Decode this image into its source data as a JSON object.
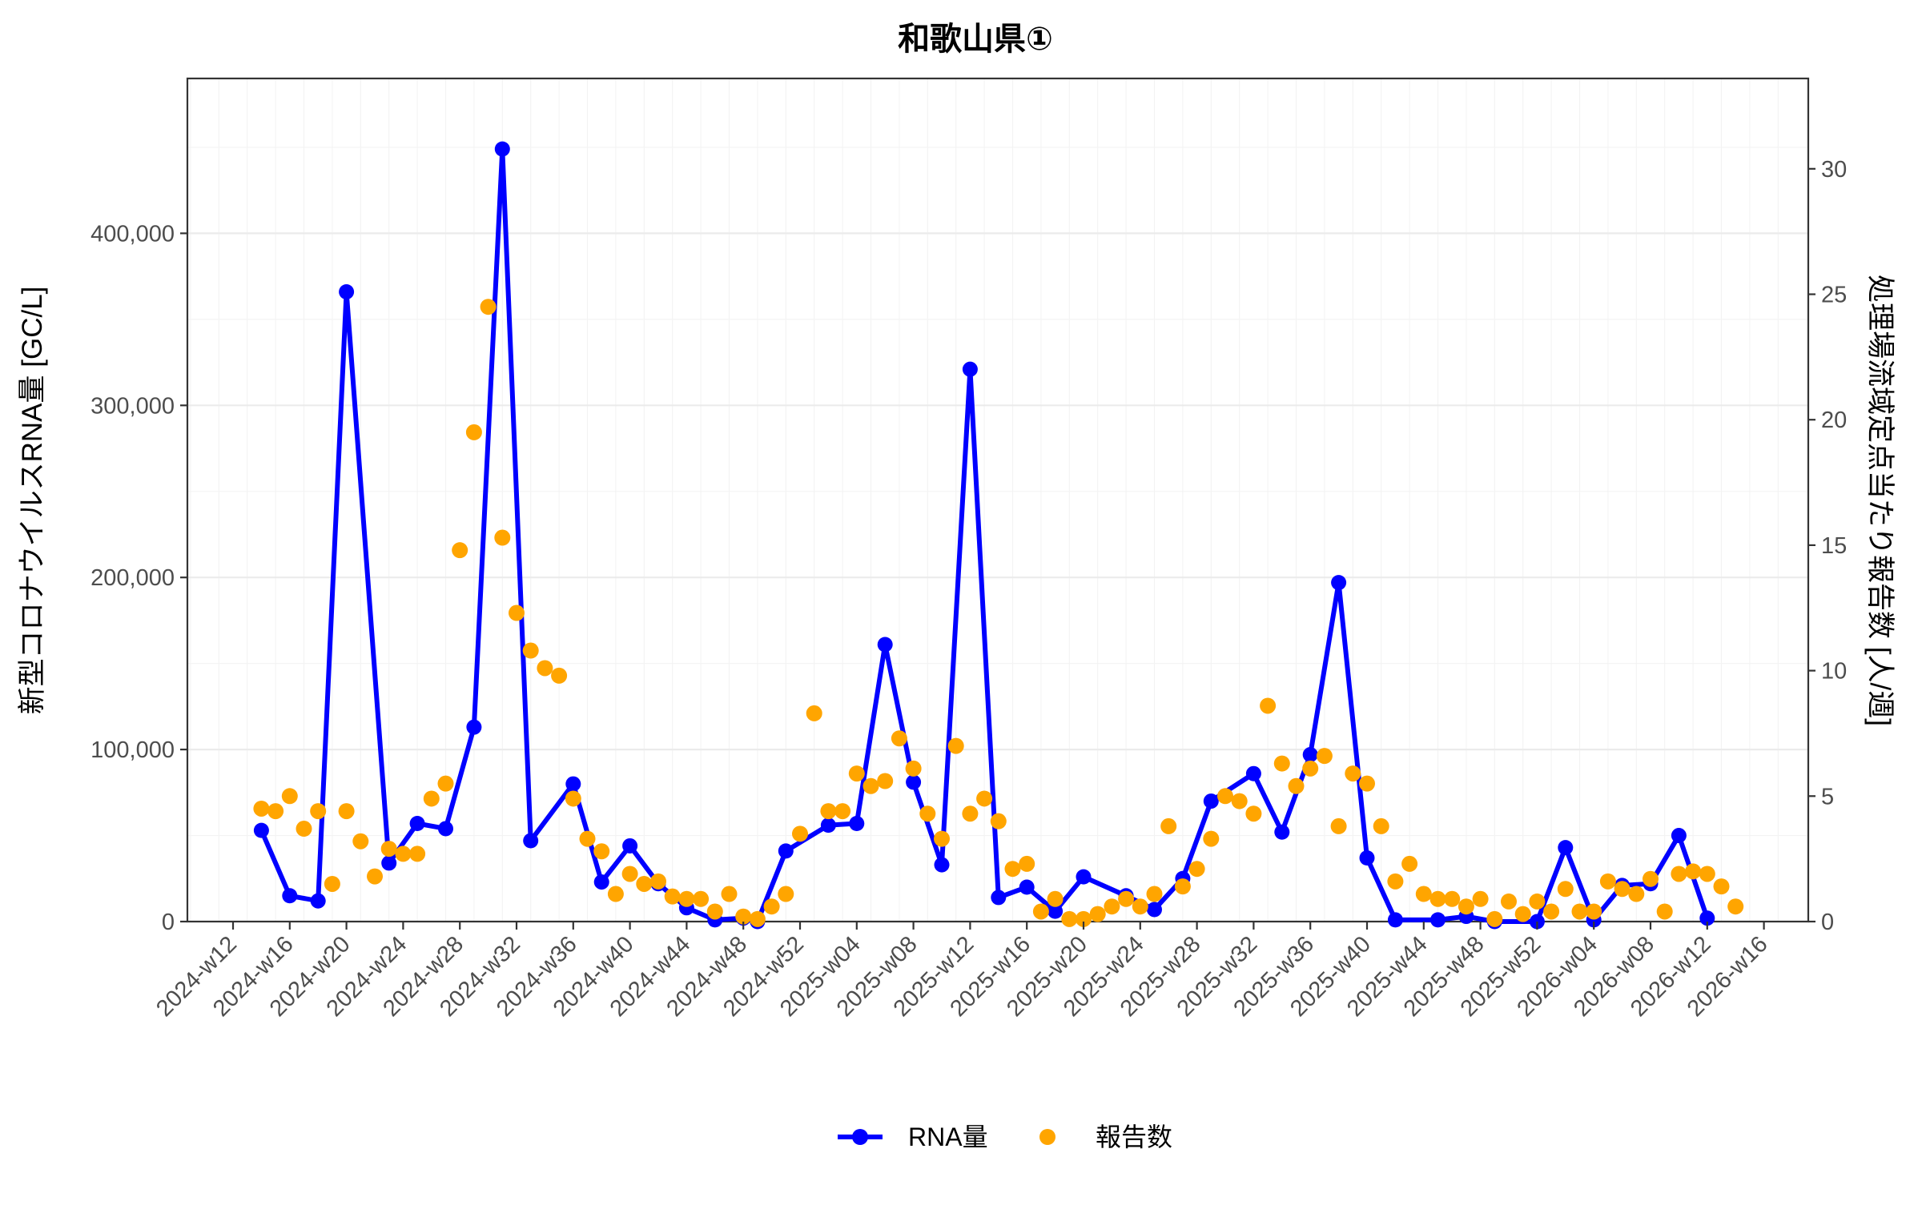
{
  "chart_data": {
    "type": "line",
    "title": "和歌山県①",
    "xlabel": "",
    "ylabel": "新型コロナウイルスRNA量 [GC/L]",
    "y2label": "処理場流域定点当たり報告数 [人/週]",
    "ylim": [
      0,
      490000
    ],
    "y2lim": [
      0,
      33.6
    ],
    "y_ticks": [
      0,
      100000,
      200000,
      300000,
      400000
    ],
    "y_tick_labels": [
      "0",
      "100,000",
      "200,000",
      "300,000",
      "400,000"
    ],
    "y2_ticks": [
      0,
      5,
      10,
      15,
      20,
      25,
      30
    ],
    "y2_tick_labels": [
      "0",
      "5",
      "10",
      "15",
      "20",
      "25",
      "30"
    ],
    "x_tick_labels": [
      "2024-w12",
      "2024-w16",
      "2024-w20",
      "2024-w24",
      "2024-w28",
      "2024-w32",
      "2024-w36",
      "2024-w40",
      "2024-w44",
      "2024-w48",
      "2024-w52",
      "2025-w04",
      "2025-w08",
      "2025-w12",
      "2025-w16",
      "2025-w20",
      "2025-w24",
      "2025-w28",
      "2025-w32",
      "2025-w36",
      "2025-w40",
      "2025-w44",
      "2025-w48",
      "2025-w52",
      "2026-w04",
      "2026-w08",
      "2026-w12",
      "2026-w16"
    ],
    "grid": true,
    "legend_position": "bottom",
    "legend": [
      {
        "name": "RNA量",
        "type": "line+point",
        "color": "#0000FF"
      },
      {
        "name": "報告数",
        "type": "point",
        "color": "#FFA500"
      }
    ],
    "series": [
      {
        "name": "RNA量",
        "axis": "left",
        "color": "#0000FF",
        "points": [
          {
            "x": "2024-w14",
            "y": 53000
          },
          {
            "x": "2024-w16",
            "y": 15000
          },
          {
            "x": "2024-w18",
            "y": 12000
          },
          {
            "x": "2024-w20",
            "y": 366000
          },
          {
            "x": "2024-w23",
            "y": 34000
          },
          {
            "x": "2024-w25",
            "y": 57000
          },
          {
            "x": "2024-w27",
            "y": 54000
          },
          {
            "x": "2024-w29",
            "y": 113000
          },
          {
            "x": "2024-w31",
            "y": 449000
          },
          {
            "x": "2024-w33",
            "y": 47000
          },
          {
            "x": "2024-w36",
            "y": 80000
          },
          {
            "x": "2024-w38",
            "y": 23000
          },
          {
            "x": "2024-w40",
            "y": 44000
          },
          {
            "x": "2024-w42",
            "y": 22000
          },
          {
            "x": "2024-w44",
            "y": 8000
          },
          {
            "x": "2024-w46",
            "y": 1000
          },
          {
            "x": "2024-w48",
            "y": 2000
          },
          {
            "x": "2024-w49",
            "y": 0
          },
          {
            "x": "2024-w51",
            "y": 41000
          },
          {
            "x": "2025-w02",
            "y": 56000
          },
          {
            "x": "2025-w04",
            "y": 57000
          },
          {
            "x": "2025-w06",
            "y": 161000
          },
          {
            "x": "2025-w08",
            "y": 81000
          },
          {
            "x": "2025-w10",
            "y": 33000
          },
          {
            "x": "2025-w12",
            "y": 321000
          },
          {
            "x": "2025-w14",
            "y": 14000
          },
          {
            "x": "2025-w16",
            "y": 20000
          },
          {
            "x": "2025-w18",
            "y": 6000
          },
          {
            "x": "2025-w20",
            "y": 26000
          },
          {
            "x": "2025-w23",
            "y": 15000
          },
          {
            "x": "2025-w25",
            "y": 7000
          },
          {
            "x": "2025-w27",
            "y": 25000
          },
          {
            "x": "2025-w29",
            "y": 70000
          },
          {
            "x": "2025-w32",
            "y": 86000
          },
          {
            "x": "2025-w34",
            "y": 52000
          },
          {
            "x": "2025-w36",
            "y": 97000
          },
          {
            "x": "2025-w38",
            "y": 197000
          },
          {
            "x": "2025-w40",
            "y": 37000
          },
          {
            "x": "2025-w42",
            "y": 1000
          },
          {
            "x": "2025-w45",
            "y": 1000
          },
          {
            "x": "2025-w47",
            "y": 3000
          },
          {
            "x": "2025-w49",
            "y": 0
          },
          {
            "x": "2025-w52",
            "y": 0
          },
          {
            "x": "2026-w02",
            "y": 43000
          },
          {
            "x": "2026-w04",
            "y": 1000
          },
          {
            "x": "2026-w06",
            "y": 21000
          },
          {
            "x": "2026-w08",
            "y": 22000
          },
          {
            "x": "2026-w10",
            "y": 50000
          },
          {
            "x": "2026-w12",
            "y": 2000
          }
        ]
      },
      {
        "name": "報告数",
        "axis": "right",
        "color": "#FFA500",
        "points": [
          {
            "x": "2024-w14",
            "y": 4.5
          },
          {
            "x": "2024-w15",
            "y": 4.4
          },
          {
            "x": "2024-w16",
            "y": 5.0
          },
          {
            "x": "2024-w17",
            "y": 3.7
          },
          {
            "x": "2024-w18",
            "y": 4.4
          },
          {
            "x": "2024-w19",
            "y": 1.5
          },
          {
            "x": "2024-w20",
            "y": 4.4
          },
          {
            "x": "2024-w21",
            "y": 3.2
          },
          {
            "x": "2024-w22",
            "y": 1.8
          },
          {
            "x": "2024-w23",
            "y": 2.9
          },
          {
            "x": "2024-w24",
            "y": 2.7
          },
          {
            "x": "2024-w25",
            "y": 2.7
          },
          {
            "x": "2024-w26",
            "y": 4.9
          },
          {
            "x": "2024-w27",
            "y": 5.5
          },
          {
            "x": "2024-w28",
            "y": 14.8
          },
          {
            "x": "2024-w29",
            "y": 19.5
          },
          {
            "x": "2024-w30",
            "y": 24.5
          },
          {
            "x": "2024-w31",
            "y": 15.3
          },
          {
            "x": "2024-w32",
            "y": 12.3
          },
          {
            "x": "2024-w33",
            "y": 10.8
          },
          {
            "x": "2024-w34",
            "y": 10.1
          },
          {
            "x": "2024-w35",
            "y": 9.8
          },
          {
            "x": "2024-w36",
            "y": 4.9
          },
          {
            "x": "2024-w37",
            "y": 3.3
          },
          {
            "x": "2024-w38",
            "y": 2.8
          },
          {
            "x": "2024-w39",
            "y": 1.1
          },
          {
            "x": "2024-w40",
            "y": 1.9
          },
          {
            "x": "2024-w41",
            "y": 1.5
          },
          {
            "x": "2024-w42",
            "y": 1.6
          },
          {
            "x": "2024-w43",
            "y": 1.0
          },
          {
            "x": "2024-w44",
            "y": 0.9
          },
          {
            "x": "2024-w45",
            "y": 0.9
          },
          {
            "x": "2024-w46",
            "y": 0.4
          },
          {
            "x": "2024-w47",
            "y": 1.1
          },
          {
            "x": "2024-w48",
            "y": 0.2
          },
          {
            "x": "2024-w49",
            "y": 0.1
          },
          {
            "x": "2024-w50",
            "y": 0.6
          },
          {
            "x": "2024-w51",
            "y": 1.1
          },
          {
            "x": "2024-w52",
            "y": 3.5
          },
          {
            "x": "2025-w01",
            "y": 8.3
          },
          {
            "x": "2025-w02",
            "y": 4.4
          },
          {
            "x": "2025-w03",
            "y": 4.4
          },
          {
            "x": "2025-w04",
            "y": 5.9
          },
          {
            "x": "2025-w05",
            "y": 5.4
          },
          {
            "x": "2025-w06",
            "y": 5.6
          },
          {
            "x": "2025-w07",
            "y": 7.3
          },
          {
            "x": "2025-w08",
            "y": 6.1
          },
          {
            "x": "2025-w09",
            "y": 4.3
          },
          {
            "x": "2025-w10",
            "y": 3.3
          },
          {
            "x": "2025-w11",
            "y": 7.0
          },
          {
            "x": "2025-w12",
            "y": 4.3
          },
          {
            "x": "2025-w13",
            "y": 4.9
          },
          {
            "x": "2025-w14",
            "y": 4.0
          },
          {
            "x": "2025-w15",
            "y": 2.1
          },
          {
            "x": "2025-w16",
            "y": 2.3
          },
          {
            "x": "2025-w17",
            "y": 0.4
          },
          {
            "x": "2025-w18",
            "y": 0.9
          },
          {
            "x": "2025-w19",
            "y": 0.1
          },
          {
            "x": "2025-w20",
            "y": 0.1
          },
          {
            "x": "2025-w21",
            "y": 0.3
          },
          {
            "x": "2025-w22",
            "y": 0.6
          },
          {
            "x": "2025-w23",
            "y": 0.9
          },
          {
            "x": "2025-w24",
            "y": 0.6
          },
          {
            "x": "2025-w25",
            "y": 1.1
          },
          {
            "x": "2025-w26",
            "y": 3.8
          },
          {
            "x": "2025-w27",
            "y": 1.4
          },
          {
            "x": "2025-w28",
            "y": 2.1
          },
          {
            "x": "2025-w29",
            "y": 3.3
          },
          {
            "x": "2025-w30",
            "y": 5.0
          },
          {
            "x": "2025-w31",
            "y": 4.8
          },
          {
            "x": "2025-w32",
            "y": 4.3
          },
          {
            "x": "2025-w33",
            "y": 8.6
          },
          {
            "x": "2025-w34",
            "y": 6.3
          },
          {
            "x": "2025-w35",
            "y": 5.4
          },
          {
            "x": "2025-w36",
            "y": 6.1
          },
          {
            "x": "2025-w37",
            "y": 6.6
          },
          {
            "x": "2025-w38",
            "y": 3.8
          },
          {
            "x": "2025-w39",
            "y": 5.9
          },
          {
            "x": "2025-w40",
            "y": 5.5
          },
          {
            "x": "2025-w41",
            "y": 3.8
          },
          {
            "x": "2025-w42",
            "y": 1.6
          },
          {
            "x": "2025-w43",
            "y": 2.3
          },
          {
            "x": "2025-w44",
            "y": 1.1
          },
          {
            "x": "2025-w45",
            "y": 0.9
          },
          {
            "x": "2025-w46",
            "y": 0.9
          },
          {
            "x": "2025-w47",
            "y": 0.6
          },
          {
            "x": "2025-w48",
            "y": 0.9
          },
          {
            "x": "2025-w49",
            "y": 0.1
          },
          {
            "x": "2025-w50",
            "y": 0.8
          },
          {
            "x": "2025-w51",
            "y": 0.3
          },
          {
            "x": "2025-w52",
            "y": 0.8
          },
          {
            "x": "2026-w01",
            "y": 0.4
          },
          {
            "x": "2026-w02",
            "y": 1.3
          },
          {
            "x": "2026-w03",
            "y": 0.4
          },
          {
            "x": "2026-w04",
            "y": 0.4
          },
          {
            "x": "2026-w05",
            "y": 1.6
          },
          {
            "x": "2026-w06",
            "y": 1.3
          },
          {
            "x": "2026-w07",
            "y": 1.1
          },
          {
            "x": "2026-w08",
            "y": 1.7
          },
          {
            "x": "2026-w09",
            "y": 0.4
          },
          {
            "x": "2026-w10",
            "y": 1.9
          },
          {
            "x": "2026-w11",
            "y": 2.0
          },
          {
            "x": "2026-w12",
            "y": 1.9
          },
          {
            "x": "2026-w13",
            "y": 1.4
          },
          {
            "x": "2026-w14",
            "y": 0.6
          }
        ]
      }
    ]
  },
  "colors": {
    "rna_line": "#0000FF",
    "report_points": "#FFA500",
    "grid_major": "#EBEBEB",
    "grid_minor": "#F3F3F3",
    "axis": "#333333",
    "tick_text": "#4D4D4D"
  }
}
